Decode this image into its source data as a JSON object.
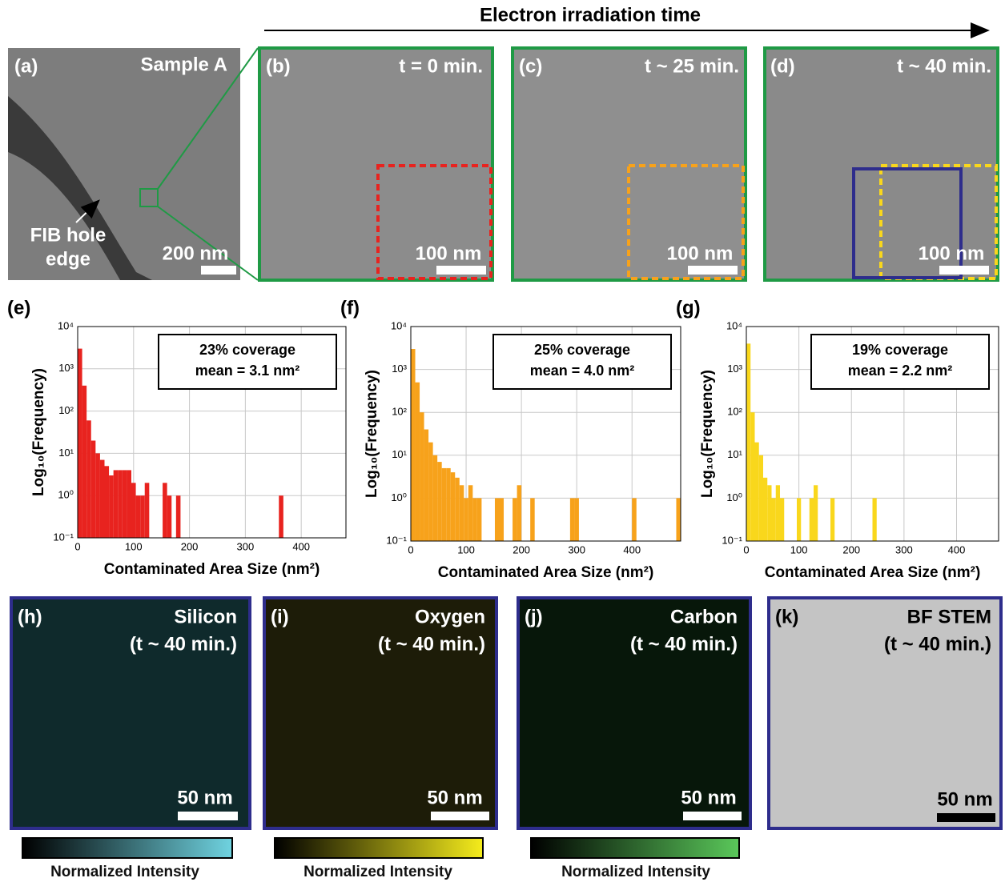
{
  "header": {
    "title": "Electron irradiation time"
  },
  "images": [
    {
      "label": "(a)",
      "caption": "Sample A",
      "scale": "200 nm",
      "annotation": [
        "FIB hole",
        "edge"
      ]
    },
    {
      "label": "(b)",
      "caption": "t = 0 min.",
      "scale": "100 nm"
    },
    {
      "label": "(c)",
      "caption": "t ~ 25 min.",
      "scale": "100 nm"
    },
    {
      "label": "(d)",
      "caption": "t ~ 40 min.",
      "scale": "100 nm"
    }
  ],
  "maps": [
    {
      "label": "(h)",
      "caption": [
        "Silicon",
        "(t ~ 40 min.)"
      ],
      "scale": "50 nm",
      "colorbar": "Normalized Intensity"
    },
    {
      "label": "(i)",
      "caption": [
        "Oxygen",
        "(t ~ 40 min.)"
      ],
      "scale": "50 nm",
      "colorbar": "Normalized Intensity"
    },
    {
      "label": "(j)",
      "caption": [
        "Carbon",
        "(t ~ 40 min.)"
      ],
      "scale": "50 nm",
      "colorbar": "Normalized Intensity"
    },
    {
      "label": "(k)",
      "caption": [
        "BF STEM",
        "(t ~ 40 min.)"
      ],
      "scale": "50 nm"
    }
  ],
  "chart_data": [
    {
      "type": "histogram",
      "panel": "(e)",
      "annotations": [
        "23% coverage",
        "mean = 3.1 nm²"
      ],
      "x_label": "Contaminated Area Size (nm²)",
      "y_label": "Log₁₀(Frequency)",
      "color": "#e8231f",
      "log_y": true,
      "grid": true,
      "bins": [
        0,
        8,
        16,
        24,
        32,
        40,
        48,
        56,
        64,
        72,
        80,
        88,
        96,
        104,
        112,
        120,
        128,
        136,
        144,
        152,
        160,
        168,
        176,
        184,
        192,
        200,
        208,
        216,
        224,
        232,
        240,
        248,
        256,
        264,
        272,
        280,
        288,
        296,
        304,
        312,
        320,
        328,
        336,
        344,
        352,
        360,
        368
      ],
      "values": [
        3000,
        400,
        60,
        20,
        10,
        7,
        5,
        3,
        4,
        4,
        4,
        4,
        2,
        1,
        1,
        2,
        null,
        null,
        null,
        2,
        1,
        null,
        1,
        null,
        null,
        null,
        null,
        null,
        null,
        null,
        null,
        null,
        null,
        null,
        null,
        null,
        null,
        null,
        null,
        null,
        null,
        null,
        null,
        null,
        null,
        1
      ],
      "xlim": [
        0,
        480
      ],
      "xticks": [
        0,
        100,
        200,
        300,
        400
      ],
      "ylim": [
        0.1,
        10000
      ],
      "yticks": [
        {
          "value": 0.1,
          "label": "10⁻¹"
        },
        {
          "value": 1,
          "label": "10⁰"
        },
        {
          "value": 10,
          "label": "10¹"
        },
        {
          "value": 100,
          "label": "10²"
        },
        {
          "value": 1000,
          "label": "10³"
        },
        {
          "value": 10000,
          "label": "10⁴"
        }
      ]
    },
    {
      "type": "histogram",
      "panel": "(f)",
      "annotations": [
        "25% coverage",
        "mean = 4.0 nm²"
      ],
      "x_label": "Contaminated Area Size (nm²)",
      "y_label": "Log₁₀(Frequency)",
      "color": "#f7a21b",
      "log_y": true,
      "grid": true,
      "bins": [
        0,
        8,
        16,
        24,
        32,
        40,
        48,
        56,
        64,
        72,
        80,
        88,
        96,
        104,
        112,
        120,
        128,
        136,
        144,
        152,
        160,
        168,
        176,
        184,
        192,
        200,
        208,
        216,
        224,
        232,
        240,
        248,
        256,
        264,
        272,
        280,
        288,
        296,
        304,
        312,
        320,
        328,
        336,
        344,
        352,
        360,
        368,
        376,
        384,
        392,
        400,
        408,
        416,
        424,
        432,
        440,
        448,
        456,
        464,
        472,
        480,
        488
      ],
      "values": [
        3000,
        500,
        100,
        40,
        20,
        10,
        7,
        5,
        5,
        4,
        3,
        2,
        1,
        2,
        1,
        1,
        null,
        null,
        null,
        1,
        1,
        null,
        null,
        1,
        2,
        null,
        null,
        1,
        null,
        null,
        null,
        null,
        null,
        null,
        null,
        null,
        1,
        1,
        null,
        null,
        null,
        null,
        null,
        null,
        null,
        null,
        null,
        null,
        null,
        null,
        1,
        null,
        null,
        null,
        null,
        null,
        null,
        null,
        null,
        null,
        1
      ],
      "xlim": [
        0,
        488
      ],
      "xticks": [
        0,
        100,
        200,
        300,
        400
      ],
      "ylim": [
        0.1,
        10000
      ],
      "yticks": [
        {
          "value": 0.1,
          "label": "10⁻¹"
        },
        {
          "value": 1,
          "label": "10⁰"
        },
        {
          "value": 10,
          "label": "10¹"
        },
        {
          "value": 100,
          "label": "10²"
        },
        {
          "value": 1000,
          "label": "10³"
        },
        {
          "value": 10000,
          "label": "10⁴"
        }
      ]
    },
    {
      "type": "histogram",
      "panel": "(g)",
      "annotations": [
        "19% coverage",
        "mean = 2.2 nm²"
      ],
      "x_label": "Contaminated Area Size (nm²)",
      "y_label": "Log₁₀(Frequency)",
      "color": "#f9d71c",
      "log_y": true,
      "grid": true,
      "bins": [
        0,
        8,
        16,
        24,
        32,
        40,
        48,
        56,
        64,
        72,
        80,
        88,
        96,
        104,
        112,
        120,
        128,
        136,
        144,
        152,
        160,
        168,
        176,
        184,
        192,
        200,
        208,
        216,
        224,
        232,
        240,
        248
      ],
      "values": [
        4000,
        100,
        20,
        10,
        3,
        2,
        1,
        2,
        1,
        null,
        null,
        null,
        1,
        null,
        null,
        1,
        2,
        null,
        null,
        null,
        1,
        null,
        null,
        null,
        null,
        null,
        null,
        null,
        null,
        null,
        1
      ],
      "xlim": [
        0,
        480
      ],
      "xticks": [
        0,
        100,
        200,
        300,
        400
      ],
      "ylim": [
        0.1,
        10000
      ],
      "yticks": [
        {
          "value": 0.1,
          "label": "10⁻¹"
        },
        {
          "value": 1,
          "label": "10⁰"
        },
        {
          "value": 10,
          "label": "10¹"
        },
        {
          "value": 100,
          "label": "10²"
        },
        {
          "value": 1000,
          "label": "10³"
        },
        {
          "value": 10000,
          "label": "10⁴"
        }
      ]
    }
  ]
}
